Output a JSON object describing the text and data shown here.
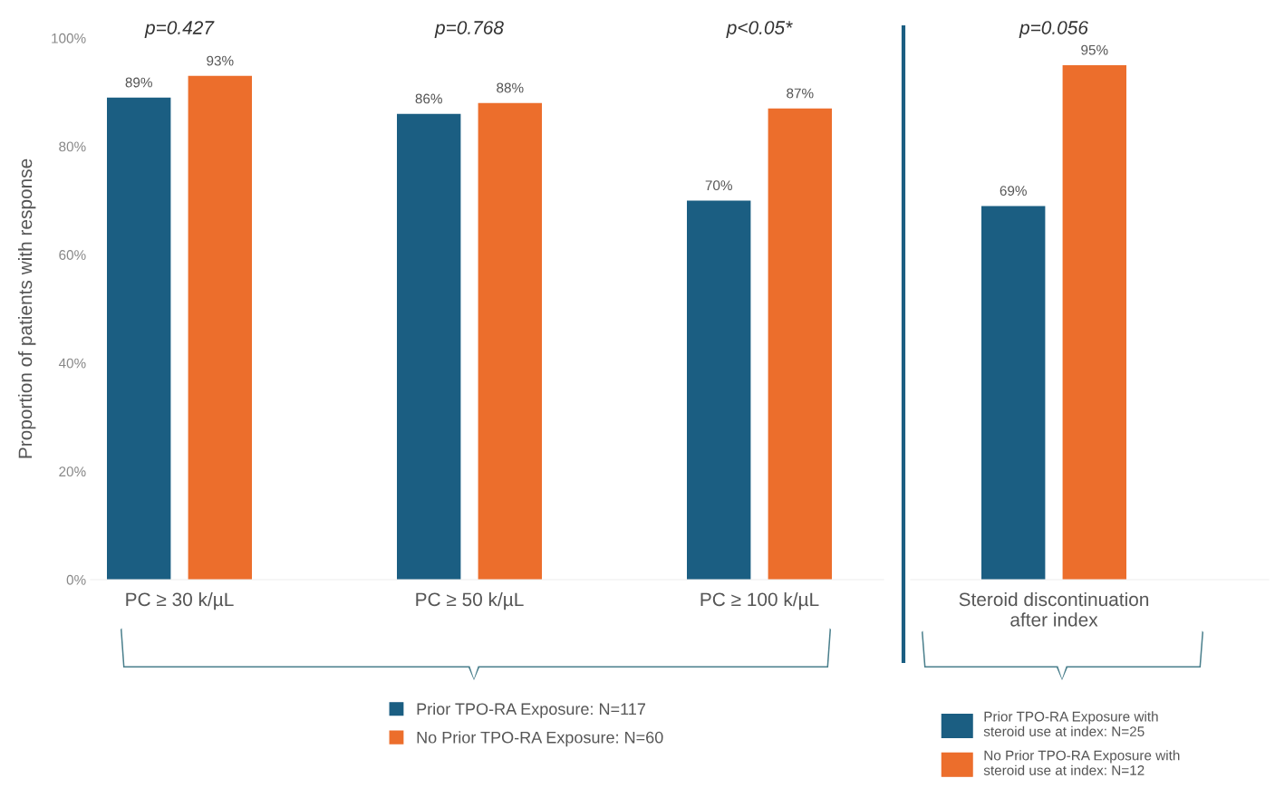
{
  "chart_data": [
    {
      "type": "bar",
      "ylabel": "Proportion of patients with response",
      "categories": [
        "PC ≥ 30 k/µL",
        "PC ≥ 50 k/µL",
        "PC ≥ 100 k/µL"
      ],
      "series": [
        {
          "name": "Prior TPO-RA Exposure: N=117",
          "color": "#1b5e82",
          "values": [
            89,
            86,
            70
          ],
          "value_labels": [
            "89%",
            "86%",
            "70%"
          ]
        },
        {
          "name": "No Prior TPO-RA Exposure: N=60",
          "color": "#ec6e2c",
          "values": [
            93,
            88,
            87
          ],
          "value_labels": [
            "93%",
            "88%",
            "87%"
          ]
        }
      ],
      "ylim": [
        0,
        100
      ],
      "yticks": [
        {
          "value": 0,
          "label": "0%"
        },
        {
          "value": 20,
          "label": "20%"
        },
        {
          "value": 40,
          "label": "40%"
        },
        {
          "value": 60,
          "label": "60%"
        },
        {
          "value": 80,
          "label": "80%"
        },
        {
          "value": 100,
          "label": "100%"
        }
      ],
      "annotations": [
        "p=0.427",
        "p=0.768",
        "p<0.05*"
      ],
      "legend": "bottom",
      "grid": false
    },
    {
      "type": "bar",
      "categories": [
        "Steroid discontinuation\nafter index"
      ],
      "series": [
        {
          "name": "Prior TPO-RA Exposure with\nsteroid use at index: N=25",
          "color": "#1b5e82",
          "values": [
            69
          ],
          "value_labels": [
            "69%"
          ]
        },
        {
          "name": "No Prior TPO-RA Exposure with\nsteroid use at index: N=12",
          "color": "#ec6e2c",
          "values": [
            95
          ],
          "value_labels": [
            "95%"
          ]
        }
      ],
      "ylim": [
        0,
        100
      ],
      "tick_labels": "x",
      "annotations": [
        "p=0.056"
      ],
      "legend": "bottom",
      "grid": false
    }
  ]
}
